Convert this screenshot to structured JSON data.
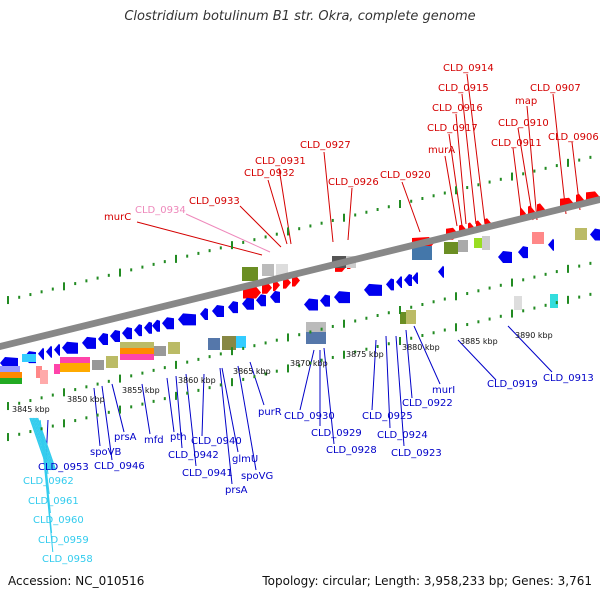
{
  "title": "Clostridium botulinum B1 str. Okra, complete genome",
  "accession": "Accession: NC_010516",
  "topology": "Topology: circular; Length: 3,958,233 bp; Genes: 3,761",
  "colors": {
    "forward_label": "#d40000",
    "reverse_label": "#0000c8",
    "highlight_label": "#ee88bb",
    "cyan_label": "#33ccee",
    "backbone": "#888888",
    "tick_green": "#228b22",
    "forward_gene": "#ff0000",
    "reverse_gene": "#0000ee"
  },
  "axis_ticks": [
    "3845 kbp",
    "3850 kbp",
    "3855 kbp",
    "3860 kbp",
    "3865 kbp",
    "3870 kbp",
    "3875 kbp",
    "3880 kbp",
    "3885 kbp",
    "3890 kbp"
  ],
  "forward_labels": [
    "murC",
    "CLD_0934",
    "CLD_0933",
    "CLD_0932",
    "CLD_0931",
    "CLD_0927",
    "CLD_0926",
    "CLD_0920",
    "murA",
    "CLD_0917",
    "CLD_0916",
    "CLD_0915",
    "CLD_0914",
    "CLD_0911",
    "CLD_0910",
    "map",
    "CLD_0907",
    "CLD_0906"
  ],
  "reverse_labels": [
    "CLD_0953",
    "spoVB",
    "CLD_0946",
    "prsA",
    "mfd",
    "pth",
    "CLD_0942",
    "CLD_0941",
    "CLD_0940",
    "glmU",
    "prsA",
    "spoVG",
    "purR",
    "CLD_0930",
    "CLD_0929",
    "CLD_0928",
    "CLD_0925",
    "CLD_0924",
    "CLD_0923",
    "CLD_0922",
    "murI",
    "CLD_0919",
    "CLD_0913"
  ],
  "cyan_labels": [
    "CLD_0962",
    "CLD_0961",
    "CLD_0960",
    "CLD_0959",
    "CLD_0958"
  ]
}
